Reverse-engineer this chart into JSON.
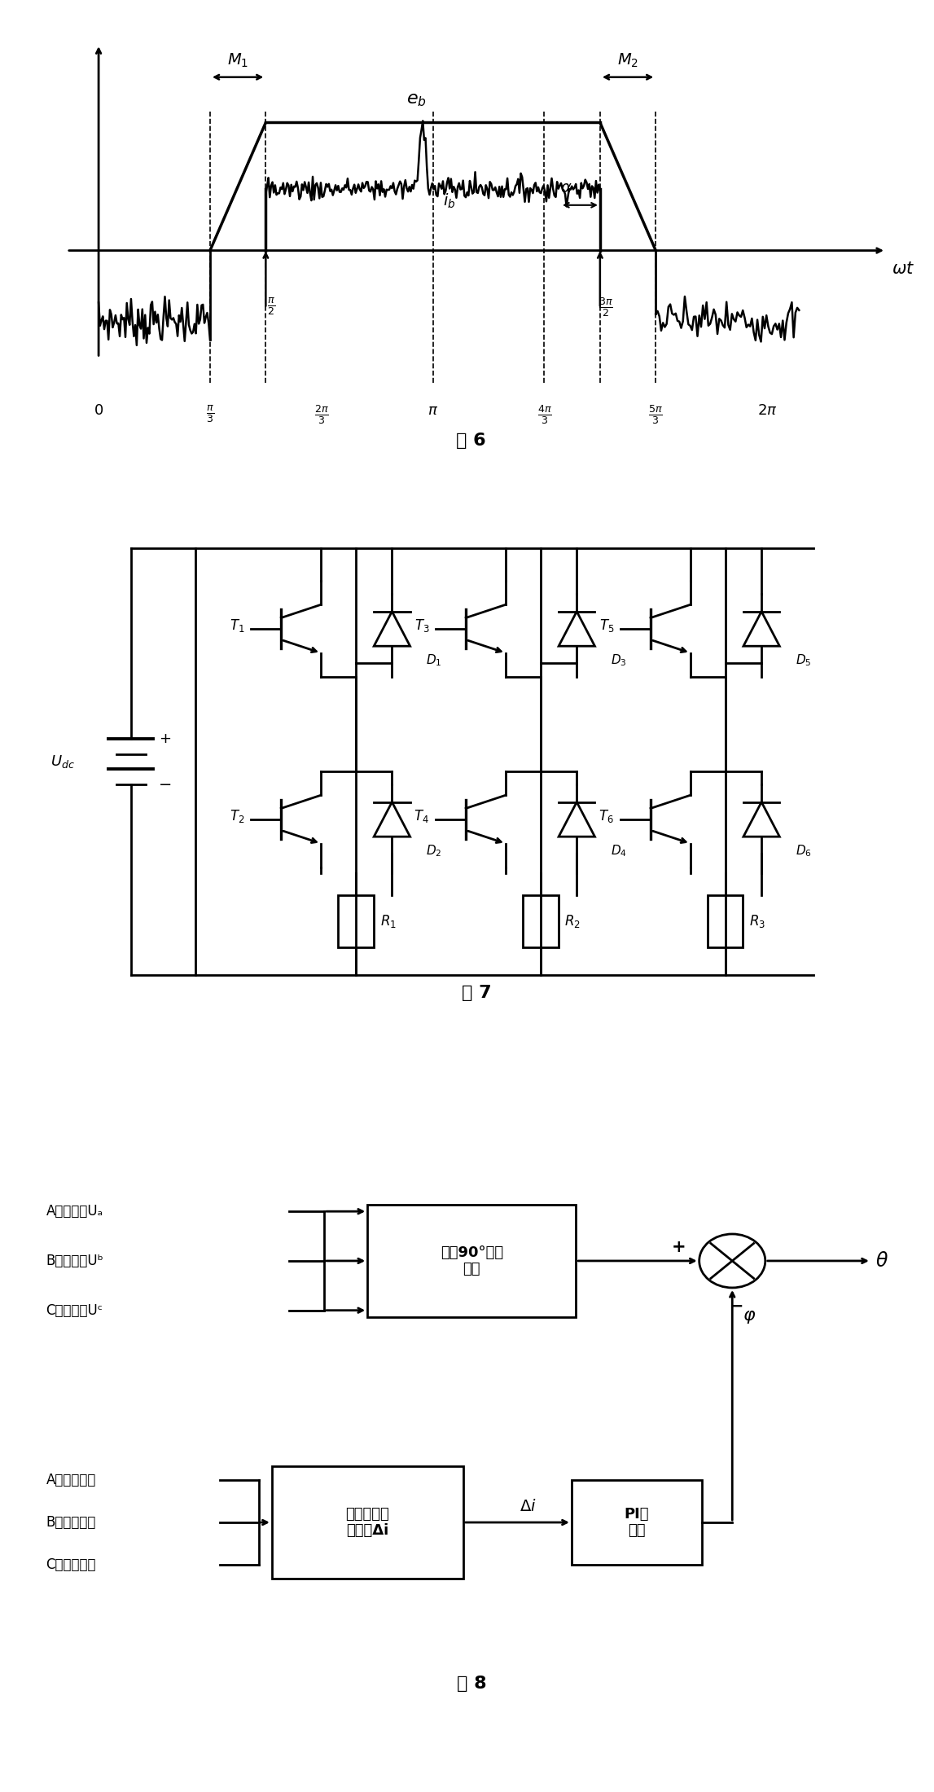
{
  "fig6_title": "图 6",
  "fig7_title": "图 7",
  "fig8_title": "图 8",
  "background": "#ffffff",
  "fig8_box_estimate": "估算90°延时\n角度",
  "fig8_box_current_diff": "求取续流电\n流偏差Δi",
  "fig8_box_pi": "PI调\n节器",
  "fig8_inputs_top": [
    "A相端电压Uₐ",
    "B相端电压Uᵇ",
    "C相端电压Uᶜ"
  ],
  "fig8_inputs_bot": [
    "A相续流电流",
    "B相续流电流",
    "C相续流电流"
  ],
  "fig8_theta": "θ",
  "fig8_phi": "φ",
  "fig8_delta_i": "Δi"
}
